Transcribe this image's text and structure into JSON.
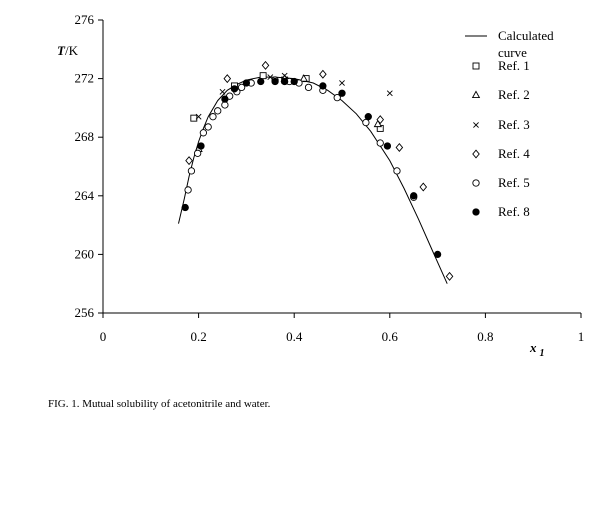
{
  "chart_data": {
    "type": "scatter",
    "title": "",
    "xlabel": "x",
    "xlabel_subscript": "1",
    "ylabel": "T",
    "ylabel_unit": "/K",
    "xlim": [
      0,
      1
    ],
    "ylim": [
      256,
      276
    ],
    "x_ticks": [
      "0",
      "0.2",
      "0.4",
      "0.6",
      "0.8",
      "1"
    ],
    "y_ticks": [
      "256",
      "260",
      "264",
      "268",
      "272",
      "276"
    ],
    "grid": false,
    "legend_position": "top-right",
    "curve": {
      "name": "Calculated curve",
      "x": [
        0.158,
        0.17,
        0.18,
        0.19,
        0.2,
        0.21,
        0.22,
        0.24,
        0.26,
        0.28,
        0.3,
        0.33,
        0.36,
        0.4,
        0.44,
        0.47,
        0.5,
        0.53,
        0.56,
        0.6,
        0.63,
        0.66,
        0.69,
        0.72
      ],
      "y": [
        262.1,
        263.8,
        265.3,
        266.6,
        267.7,
        268.6,
        269.4,
        270.5,
        271.2,
        271.6,
        271.9,
        272.1,
        272.1,
        272.0,
        271.7,
        271.2,
        270.5,
        269.6,
        268.4,
        266.4,
        264.5,
        262.4,
        260.2,
        258.0
      ]
    },
    "series": [
      {
        "name": "Ref. 1",
        "marker": "square",
        "x": [
          0.19,
          0.275,
          0.335,
          0.38,
          0.425,
          0.58
        ],
        "y": [
          269.3,
          271.5,
          272.2,
          271.9,
          272.0,
          268.6
        ]
      },
      {
        "name": "Ref. 2",
        "marker": "triangle",
        "x": [
          0.2,
          0.38,
          0.42,
          0.575
        ],
        "y": [
          267.2,
          272.0,
          272.0,
          268.9
        ]
      },
      {
        "name": "Ref. 3",
        "marker": "cross",
        "x": [
          0.2,
          0.25,
          0.35,
          0.38,
          0.5,
          0.6
        ],
        "y": [
          269.4,
          271.1,
          272.1,
          272.2,
          271.7,
          271.0
        ]
      },
      {
        "name": "Ref. 4",
        "marker": "diamond",
        "x": [
          0.18,
          0.26,
          0.34,
          0.46,
          0.58,
          0.62,
          0.67,
          0.725
        ],
        "y": [
          266.4,
          272.0,
          272.9,
          272.3,
          269.2,
          267.3,
          264.6,
          258.5
        ]
      },
      {
        "name": "Ref. 5",
        "marker": "circle-open",
        "x": [
          0.178,
          0.185,
          0.198,
          0.21,
          0.22,
          0.23,
          0.24,
          0.255,
          0.265,
          0.28,
          0.29,
          0.31,
          0.36,
          0.39,
          0.41,
          0.43,
          0.46,
          0.49,
          0.55,
          0.58,
          0.615,
          0.65
        ],
        "y": [
          264.4,
          265.7,
          266.9,
          268.3,
          268.7,
          269.4,
          269.8,
          270.2,
          270.8,
          271.1,
          271.4,
          271.7,
          271.9,
          271.8,
          271.7,
          271.4,
          271.2,
          270.7,
          269.0,
          267.6,
          265.7,
          263.9
        ]
      },
      {
        "name": "Ref. 8",
        "marker": "circle-filled",
        "x": [
          0.172,
          0.205,
          0.255,
          0.275,
          0.3,
          0.33,
          0.36,
          0.38,
          0.4,
          0.46,
          0.5,
          0.555,
          0.595,
          0.65,
          0.7
        ],
        "y": [
          263.2,
          267.4,
          270.6,
          271.3,
          271.7,
          271.8,
          271.8,
          271.8,
          271.8,
          271.5,
          271.0,
          269.4,
          267.4,
          264.0,
          260.0
        ]
      }
    ],
    "legend": [
      {
        "label": "Calculated",
        "label2": "curve",
        "marker": "line"
      },
      {
        "label": "Ref. 1",
        "marker": "square"
      },
      {
        "label": "Ref. 2",
        "marker": "triangle"
      },
      {
        "label": "Ref. 3",
        "marker": "cross"
      },
      {
        "label": "Ref. 4",
        "marker": "diamond"
      },
      {
        "label": "Ref. 5",
        "marker": "circle-open"
      },
      {
        "label": "Ref. 8",
        "marker": "circle-filled"
      }
    ]
  },
  "caption": "FIG. 1. Mutual solubility of acetonitrile and water."
}
